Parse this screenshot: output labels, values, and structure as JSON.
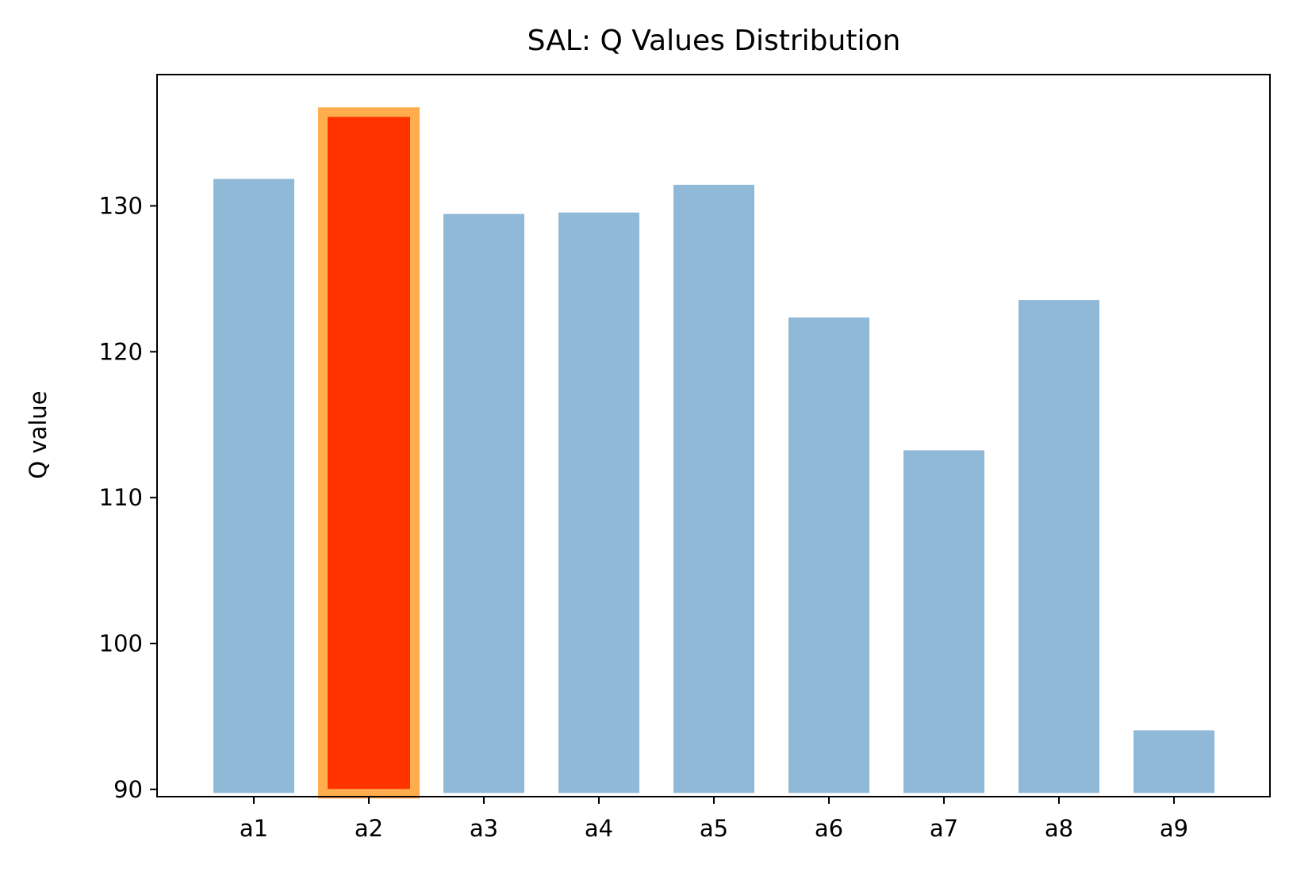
{
  "chart_data": {
    "type": "bar",
    "title": "SAL: Q Values Distribution",
    "xlabel": "",
    "ylabel": "Q value",
    "categories": [
      "a1",
      "a2",
      "a3",
      "a4",
      "a5",
      "a6",
      "a7",
      "a8",
      "a9"
    ],
    "values": [
      131.9,
      136.1,
      129.5,
      129.6,
      131.5,
      122.4,
      113.3,
      123.6,
      94.1
    ],
    "baseline": 89.7,
    "highlight_index": 1,
    "ylim": [
      89.5,
      139.0
    ],
    "yticks": [
      90,
      100,
      110,
      120,
      130
    ],
    "grid": false,
    "colors": {
      "bar": "#90b8d7",
      "bar_edge": "#ffffff",
      "highlight_fill": "#ff3300",
      "highlight_edge": "#ffad4d",
      "axis": "#000000"
    }
  }
}
